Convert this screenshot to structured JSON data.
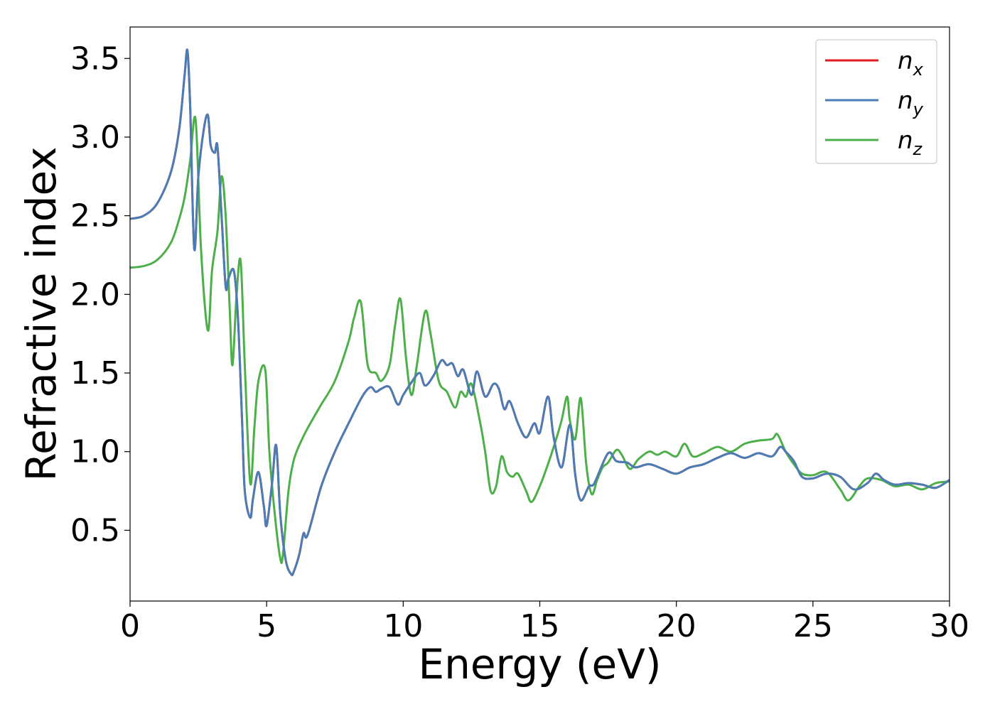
{
  "chart_data": {
    "type": "line",
    "xlabel": "Energy (eV)",
    "ylabel": "Refractive index",
    "xlim": [
      0,
      30
    ],
    "ylim": [
      0.05,
      3.7
    ],
    "xticks": [
      0,
      5,
      10,
      15,
      20,
      25,
      30
    ],
    "xtick_labels": [
      "0",
      "5",
      "10",
      "15",
      "20",
      "25",
      "30"
    ],
    "yticks": [
      0.5,
      1.0,
      1.5,
      2.0,
      2.5,
      3.0,
      3.5
    ],
    "ytick_labels": [
      "0.5",
      "1.0",
      "1.5",
      "2.0",
      "2.5",
      "3.0",
      "3.5"
    ],
    "grid": false,
    "legend_position": "top-right",
    "colors": {
      "n_x": "#e41a1c",
      "n_y": "#4a7db5",
      "n_z": "#4daf4a"
    },
    "series": [
      {
        "name": "n_x",
        "legend_base": "n",
        "legend_sub": "x",
        "color": "#e41a1c",
        "x": [
          0,
          0.5,
          1.0,
          1.5,
          1.8,
          2.0,
          2.1,
          2.2,
          2.35,
          2.5,
          2.7,
          2.85,
          2.95,
          3.1,
          3.2,
          3.35,
          3.5,
          3.6,
          3.8,
          3.95,
          4.1,
          4.2,
          4.4,
          4.5,
          4.7,
          4.9,
          5.0,
          5.2,
          5.35,
          5.5,
          5.7,
          5.9,
          6.0,
          6.2,
          6.35,
          6.5,
          7.0,
          7.5,
          8.0,
          8.5,
          8.8,
          9.0,
          9.2,
          9.5,
          9.8,
          10.0,
          10.3,
          10.6,
          10.8,
          11.1,
          11.4,
          11.6,
          11.8,
          12.0,
          12.2,
          12.5,
          12.7,
          13.0,
          13.3,
          13.5,
          13.7,
          13.9,
          14.2,
          14.5,
          14.8,
          15.0,
          15.3,
          15.5,
          15.8,
          16.1,
          16.3,
          16.5,
          16.8,
          17.0,
          17.5,
          17.8,
          18.2,
          18.5,
          19.0,
          19.5,
          20.0,
          20.5,
          21.0,
          21.5,
          22.0,
          22.5,
          23.0,
          23.5,
          23.8,
          24.0,
          24.3,
          24.6,
          25.0,
          25.5,
          26.0,
          26.5,
          27.0,
          27.3,
          27.6,
          28.0,
          28.5,
          29.0,
          29.5,
          30.0
        ],
        "y": [
          2.48,
          2.5,
          2.58,
          2.78,
          3.05,
          3.4,
          3.55,
          3.2,
          2.29,
          2.75,
          3.05,
          3.14,
          2.95,
          2.9,
          2.94,
          2.5,
          2.05,
          2.1,
          2.15,
          1.85,
          1.2,
          0.75,
          0.58,
          0.7,
          0.87,
          0.65,
          0.53,
          0.8,
          1.04,
          0.6,
          0.31,
          0.22,
          0.24,
          0.35,
          0.48,
          0.47,
          0.78,
          1.0,
          1.18,
          1.35,
          1.41,
          1.38,
          1.4,
          1.41,
          1.3,
          1.36,
          1.44,
          1.5,
          1.42,
          1.48,
          1.58,
          1.55,
          1.56,
          1.48,
          1.52,
          1.36,
          1.51,
          1.35,
          1.43,
          1.4,
          1.27,
          1.32,
          1.18,
          1.09,
          1.18,
          1.12,
          1.35,
          1.1,
          0.9,
          1.17,
          0.85,
          0.69,
          0.78,
          0.8,
          0.99,
          0.94,
          0.93,
          0.9,
          0.92,
          0.89,
          0.86,
          0.9,
          0.92,
          0.96,
          0.99,
          0.96,
          0.99,
          0.97,
          1.03,
          1.0,
          0.94,
          0.84,
          0.83,
          0.86,
          0.84,
          0.76,
          0.8,
          0.86,
          0.82,
          0.79,
          0.8,
          0.79,
          0.77,
          0.82
        ]
      },
      {
        "name": "n_y",
        "legend_base": "n",
        "legend_sub": "y",
        "color": "#4a7db5",
        "x": [
          0,
          0.5,
          1.0,
          1.5,
          1.8,
          2.0,
          2.1,
          2.2,
          2.35,
          2.5,
          2.7,
          2.85,
          2.95,
          3.1,
          3.2,
          3.35,
          3.5,
          3.6,
          3.8,
          3.95,
          4.1,
          4.2,
          4.4,
          4.5,
          4.7,
          4.9,
          5.0,
          5.2,
          5.35,
          5.5,
          5.7,
          5.9,
          6.0,
          6.2,
          6.35,
          6.5,
          7.0,
          7.5,
          8.0,
          8.5,
          8.8,
          9.0,
          9.2,
          9.5,
          9.8,
          10.0,
          10.3,
          10.6,
          10.8,
          11.1,
          11.4,
          11.6,
          11.8,
          12.0,
          12.2,
          12.5,
          12.7,
          13.0,
          13.3,
          13.5,
          13.7,
          13.9,
          14.2,
          14.5,
          14.8,
          15.0,
          15.3,
          15.5,
          15.8,
          16.1,
          16.3,
          16.5,
          16.8,
          17.0,
          17.5,
          17.8,
          18.2,
          18.5,
          19.0,
          19.5,
          20.0,
          20.5,
          21.0,
          21.5,
          22.0,
          22.5,
          23.0,
          23.5,
          23.8,
          24.0,
          24.3,
          24.6,
          25.0,
          25.5,
          26.0,
          26.5,
          27.0,
          27.3,
          27.6,
          28.0,
          28.5,
          29.0,
          29.5,
          30.0
        ],
        "y": [
          2.48,
          2.5,
          2.58,
          2.78,
          3.05,
          3.4,
          3.55,
          3.2,
          2.29,
          2.75,
          3.05,
          3.14,
          2.95,
          2.9,
          2.94,
          2.5,
          2.05,
          2.1,
          2.15,
          1.85,
          1.2,
          0.75,
          0.58,
          0.7,
          0.87,
          0.65,
          0.53,
          0.8,
          1.04,
          0.6,
          0.31,
          0.22,
          0.24,
          0.35,
          0.48,
          0.47,
          0.78,
          1.0,
          1.18,
          1.35,
          1.41,
          1.38,
          1.4,
          1.41,
          1.3,
          1.36,
          1.44,
          1.5,
          1.42,
          1.48,
          1.58,
          1.55,
          1.56,
          1.48,
          1.52,
          1.36,
          1.51,
          1.35,
          1.43,
          1.4,
          1.27,
          1.32,
          1.18,
          1.09,
          1.18,
          1.12,
          1.35,
          1.1,
          0.9,
          1.17,
          0.85,
          0.69,
          0.78,
          0.8,
          0.99,
          0.94,
          0.93,
          0.9,
          0.92,
          0.89,
          0.86,
          0.9,
          0.92,
          0.96,
          0.99,
          0.96,
          0.99,
          0.97,
          1.03,
          1.0,
          0.94,
          0.84,
          0.83,
          0.86,
          0.84,
          0.76,
          0.8,
          0.86,
          0.82,
          0.79,
          0.8,
          0.79,
          0.77,
          0.82
        ]
      },
      {
        "name": "n_z",
        "legend_base": "n",
        "legend_sub": "z",
        "color": "#4daf4a",
        "x": [
          0,
          0.5,
          1.0,
          1.5,
          1.8,
          2.0,
          2.2,
          2.4,
          2.6,
          2.85,
          3.0,
          3.2,
          3.35,
          3.5,
          3.65,
          3.75,
          3.9,
          4.05,
          4.2,
          4.4,
          4.55,
          4.7,
          4.95,
          5.1,
          5.3,
          5.5,
          5.6,
          5.8,
          6.0,
          6.3,
          6.6,
          7.0,
          7.5,
          8.0,
          8.2,
          8.45,
          8.7,
          9.0,
          9.2,
          9.5,
          9.7,
          9.9,
          10.1,
          10.3,
          10.5,
          10.8,
          11.0,
          11.3,
          11.6,
          11.9,
          12.1,
          12.3,
          12.5,
          12.8,
          13.0,
          13.2,
          13.4,
          13.6,
          13.8,
          14.0,
          14.2,
          14.5,
          14.7,
          15.0,
          15.3,
          15.6,
          15.8,
          16.0,
          16.1,
          16.3,
          16.5,
          16.7,
          16.9,
          17.1,
          17.3,
          17.5,
          17.8,
          18.0,
          18.3,
          18.6,
          19.0,
          19.3,
          19.6,
          20.0,
          20.3,
          20.6,
          21.0,
          21.5,
          22.0,
          22.5,
          23.0,
          23.5,
          23.7,
          24.0,
          24.3,
          24.6,
          25.0,
          25.5,
          26.0,
          26.3,
          26.7,
          27.0,
          27.5,
          28.0,
          28.5,
          29.0,
          29.5,
          30.0
        ],
        "y": [
          2.17,
          2.18,
          2.22,
          2.33,
          2.48,
          2.62,
          2.85,
          3.11,
          2.28,
          1.77,
          2.15,
          2.4,
          2.75,
          2.5,
          1.9,
          1.55,
          2.0,
          2.21,
          1.55,
          0.8,
          1.15,
          1.45,
          1.52,
          1.0,
          0.6,
          0.32,
          0.35,
          0.75,
          0.95,
          1.08,
          1.18,
          1.3,
          1.45,
          1.7,
          1.85,
          1.95,
          1.55,
          1.5,
          1.45,
          1.55,
          1.8,
          1.97,
          1.6,
          1.36,
          1.55,
          1.89,
          1.75,
          1.45,
          1.38,
          1.28,
          1.38,
          1.35,
          1.43,
          1.2,
          1.0,
          0.75,
          0.78,
          0.97,
          0.87,
          0.84,
          0.86,
          0.75,
          0.68,
          0.78,
          0.92,
          1.08,
          1.2,
          1.35,
          1.2,
          1.08,
          1.34,
          0.92,
          0.73,
          0.82,
          0.9,
          0.93,
          1.01,
          0.98,
          0.89,
          0.95,
          1.0,
          0.98,
          1.0,
          0.97,
          1.05,
          0.97,
          0.99,
          1.03,
          1.0,
          1.05,
          1.07,
          1.08,
          1.11,
          1.0,
          0.92,
          0.86,
          0.85,
          0.87,
          0.76,
          0.69,
          0.78,
          0.83,
          0.82,
          0.78,
          0.79,
          0.76,
          0.8,
          0.81
        ]
      }
    ]
  }
}
